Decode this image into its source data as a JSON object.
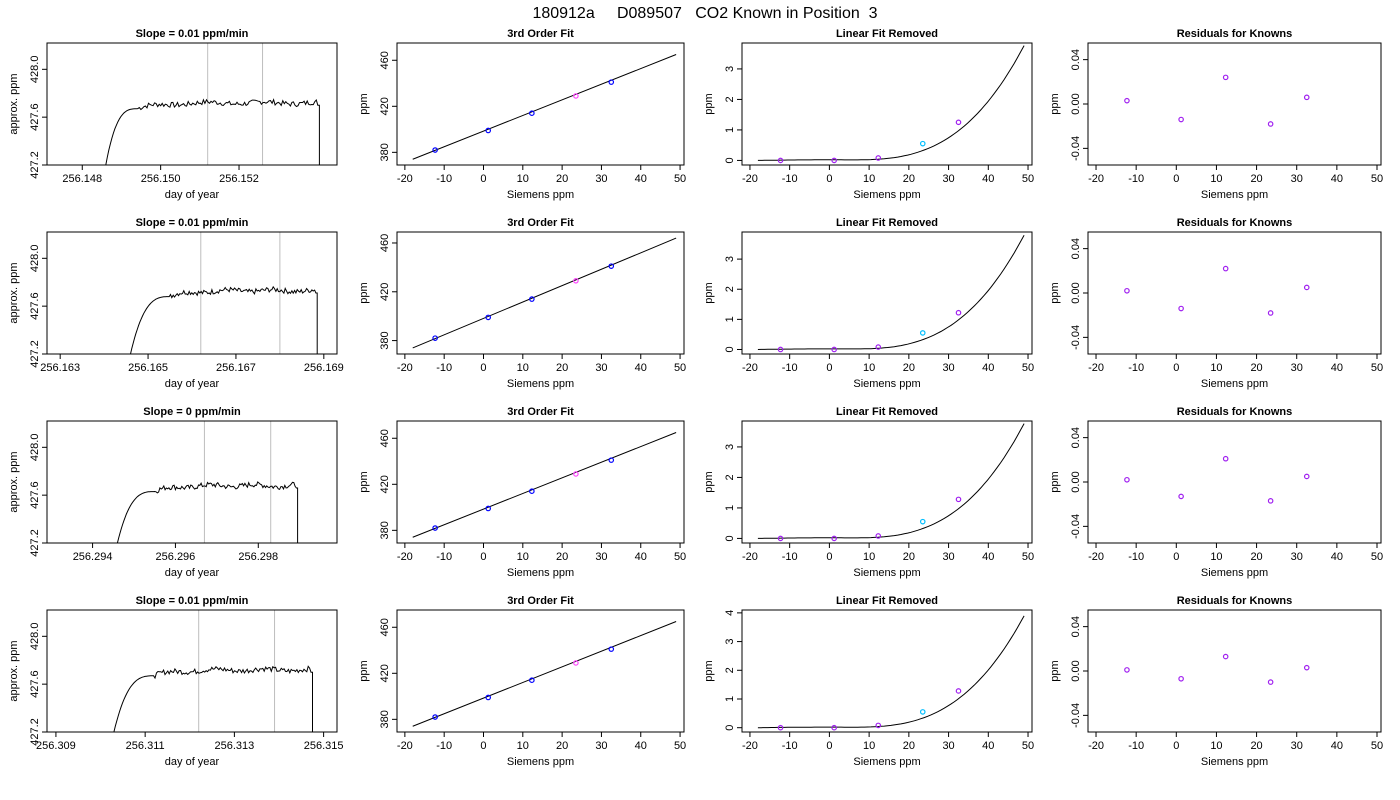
{
  "figure": {
    "title": "180912a     D089507   CO2 Known in Position  3",
    "colors": {
      "line": "#000000",
      "frame": "#000000",
      "vline": "#bebebe",
      "pt_blue": "#0000ff",
      "pt_purple": "#a020f0",
      "pt_pink": "#ff44ff",
      "pt_cyan": "#00bfff"
    }
  },
  "chart_data": [
    {
      "id": "r1c1",
      "type": "line",
      "title": "Slope =  0.01  ppm/min",
      "xlabel": "day of year",
      "ylabel": "approx. ppm",
      "xlim": [
        256.1471,
        256.1545
      ],
      "ylim": [
        427.2,
        428.22
      ],
      "xticks": [
        256.148,
        256.15,
        256.152
      ],
      "xtick_labels": [
        "256.148",
        "256.150",
        "256.152"
      ],
      "yticks": [
        427.2,
        427.6,
        428.0
      ],
      "ytick_labels": [
        "427.2",
        "427.6",
        "428.0"
      ],
      "vlines": [
        256.1512,
        256.1526
      ],
      "trace": {
        "x_start": 256.1486,
        "x_rise_end": 256.1494,
        "plateau_start": 256.1491,
        "plateau_end": 256.154,
        "x_end": 256.15405,
        "plateau_level": 427.72,
        "start_level": 427.2,
        "end_level": 427.2
      }
    },
    {
      "id": "r1c2",
      "type": "scatter",
      "title": "3rd Order Fit",
      "xlabel": "Siemens ppm",
      "ylabel": "ppm",
      "xlim": [
        -22,
        51
      ],
      "ylim": [
        369,
        475
      ],
      "xticks": [
        -20,
        -10,
        0,
        10,
        20,
        30,
        40,
        50
      ],
      "xtick_labels": [
        "-20",
        "-10",
        "0",
        "10",
        "20",
        "30",
        "40",
        "50"
      ],
      "yticks": [
        380,
        420,
        460
      ],
      "ytick_labels": [
        "380",
        "420",
        "460"
      ],
      "line": {
        "x": [
          -18,
          49
        ],
        "y": [
          374,
          465
        ]
      },
      "points": [
        {
          "x": -12.3,
          "y": 382,
          "c": "pt_blue"
        },
        {
          "x": 1.2,
          "y": 399,
          "c": "pt_blue"
        },
        {
          "x": 12.3,
          "y": 414,
          "c": "pt_blue"
        },
        {
          "x": 23.5,
          "y": 429,
          "c": "pt_pink"
        },
        {
          "x": 32.5,
          "y": 441,
          "c": "pt_blue"
        }
      ]
    },
    {
      "id": "r1c3",
      "type": "scatter",
      "title": "Linear Fit Removed",
      "xlabel": "Siemens ppm",
      "ylabel": "ppm",
      "xlim": [
        -22,
        51
      ],
      "ylim": [
        -0.15,
        3.85
      ],
      "xticks": [
        -20,
        -10,
        0,
        10,
        20,
        30,
        40,
        50
      ],
      "xtick_labels": [
        "-20",
        "-10",
        "0",
        "10",
        "20",
        "30",
        "40",
        "50"
      ],
      "yticks": [
        0,
        1,
        2,
        3
      ],
      "ytick_labels": [
        "0",
        "1",
        "2",
        "3"
      ],
      "curve": {
        "x0": -18,
        "x1": 49,
        "amp": 3.77
      },
      "points": [
        {
          "x": -12.3,
          "y": 0,
          "c": "pt_purple"
        },
        {
          "x": 1.2,
          "y": 0,
          "c": "pt_purple"
        },
        {
          "x": 12.3,
          "y": 0.08,
          "c": "pt_purple"
        },
        {
          "x": 23.5,
          "y": 0.55,
          "c": "pt_cyan"
        },
        {
          "x": 32.5,
          "y": 1.25,
          "c": "pt_purple"
        }
      ]
    },
    {
      "id": "r1c4",
      "type": "scatter",
      "title": "Residuals for Knowns",
      "xlabel": "Siemens ppm",
      "ylabel": "ppm",
      "xlim": [
        -22,
        51
      ],
      "ylim": [
        -0.055,
        0.055
      ],
      "xticks": [
        -20,
        -10,
        0,
        10,
        20,
        30,
        40,
        50
      ],
      "xtick_labels": [
        "-20",
        "-10",
        "0",
        "10",
        "20",
        "30",
        "40",
        "50"
      ],
      "yticks": [
        -0.04,
        0.0,
        0.04
      ],
      "ytick_labels": [
        "-0.04",
        "0.00",
        "0.04"
      ],
      "points": [
        {
          "x": -12.3,
          "y": 0.003,
          "c": "pt_purple"
        },
        {
          "x": 1.2,
          "y": -0.014,
          "c": "pt_purple"
        },
        {
          "x": 12.3,
          "y": 0.024,
          "c": "pt_purple"
        },
        {
          "x": 23.5,
          "y": -0.018,
          "c": "pt_purple"
        },
        {
          "x": 32.5,
          "y": 0.006,
          "c": "pt_purple"
        }
      ]
    },
    {
      "id": "r2c1",
      "type": "line",
      "title": "Slope =  0.01  ppm/min",
      "xlabel": "day of year",
      "ylabel": "approx. ppm",
      "xlim": [
        256.1627,
        256.1693
      ],
      "ylim": [
        427.2,
        428.22
      ],
      "xticks": [
        256.163,
        256.165,
        256.167,
        256.169
      ],
      "xtick_labels": [
        "256.163",
        "256.165",
        "256.167",
        "256.169"
      ],
      "yticks": [
        427.2,
        427.6,
        428.0
      ],
      "ytick_labels": [
        "427.2",
        "427.6",
        "428.0"
      ],
      "vlines": [
        256.1662,
        256.168
      ],
      "trace": {
        "x_start": 256.1646,
        "x_rise_end": 256.1655,
        "plateau_start": 256.165,
        "plateau_end": 256.1688,
        "x_end": 256.16885,
        "plateau_level": 427.73,
        "start_level": 427.2,
        "end_level": 427.2
      }
    },
    {
      "id": "r2c2",
      "type": "scatter",
      "title": "3rd Order Fit",
      "xlabel": "Siemens ppm",
      "ylabel": "ppm",
      "xlim": [
        -22,
        51
      ],
      "ylim": [
        369,
        469
      ],
      "xticks": [
        -20,
        -10,
        0,
        10,
        20,
        30,
        40,
        50
      ],
      "xtick_labels": [
        "-20",
        "-10",
        "0",
        "10",
        "20",
        "30",
        "40",
        "50"
      ],
      "yticks": [
        380,
        420,
        460
      ],
      "ytick_labels": [
        "380",
        "420",
        "460"
      ],
      "line": {
        "x": [
          -18,
          49
        ],
        "y": [
          374,
          464
        ]
      },
      "points": [
        {
          "x": -12.3,
          "y": 382,
          "c": "pt_blue"
        },
        {
          "x": 1.2,
          "y": 399,
          "c": "pt_blue"
        },
        {
          "x": 12.3,
          "y": 414,
          "c": "pt_blue"
        },
        {
          "x": 23.5,
          "y": 429,
          "c": "pt_pink"
        },
        {
          "x": 32.5,
          "y": 441,
          "c": "pt_blue"
        }
      ]
    },
    {
      "id": "r2c3",
      "type": "scatter",
      "title": "Linear Fit Removed",
      "xlabel": "Siemens ppm",
      "ylabel": "ppm",
      "xlim": [
        -22,
        51
      ],
      "ylim": [
        -0.15,
        3.9
      ],
      "xticks": [
        -20,
        -10,
        0,
        10,
        20,
        30,
        40,
        50
      ],
      "xtick_labels": [
        "-20",
        "-10",
        "0",
        "10",
        "20",
        "30",
        "40",
        "50"
      ],
      "yticks": [
        0,
        1,
        2,
        3
      ],
      "ytick_labels": [
        "0",
        "1",
        "2",
        "3"
      ],
      "curve": {
        "x0": -18,
        "x1": 49,
        "amp": 3.8
      },
      "points": [
        {
          "x": -12.3,
          "y": 0,
          "c": "pt_purple"
        },
        {
          "x": 1.2,
          "y": 0,
          "c": "pt_purple"
        },
        {
          "x": 12.3,
          "y": 0.08,
          "c": "pt_purple"
        },
        {
          "x": 23.5,
          "y": 0.55,
          "c": "pt_cyan"
        },
        {
          "x": 32.5,
          "y": 1.22,
          "c": "pt_purple"
        }
      ]
    },
    {
      "id": "r2c4",
      "type": "scatter",
      "title": "Residuals for Knowns",
      "xlabel": "Siemens ppm",
      "ylabel": "ppm",
      "xlim": [
        -22,
        51
      ],
      "ylim": [
        -0.055,
        0.055
      ],
      "xticks": [
        -20,
        -10,
        0,
        10,
        20,
        30,
        40,
        50
      ],
      "xtick_labels": [
        "-20",
        "-10",
        "0",
        "10",
        "20",
        "30",
        "40",
        "50"
      ],
      "yticks": [
        -0.04,
        0.0,
        0.04
      ],
      "ytick_labels": [
        "-0.04",
        "0.00",
        "0.04"
      ],
      "points": [
        {
          "x": -12.3,
          "y": 0.002,
          "c": "pt_purple"
        },
        {
          "x": 1.2,
          "y": -0.014,
          "c": "pt_purple"
        },
        {
          "x": 12.3,
          "y": 0.022,
          "c": "pt_purple"
        },
        {
          "x": 23.5,
          "y": -0.018,
          "c": "pt_purple"
        },
        {
          "x": 32.5,
          "y": 0.005,
          "c": "pt_purple"
        }
      ]
    },
    {
      "id": "r3c1",
      "type": "line",
      "title": "Slope =  0  ppm/min",
      "xlabel": "day of year",
      "ylabel": "approx. ppm",
      "xlim": [
        256.2929,
        256.2999
      ],
      "ylim": [
        427.2,
        428.22
      ],
      "xticks": [
        256.294,
        256.296,
        256.298
      ],
      "xtick_labels": [
        "256.294",
        "256.296",
        "256.298"
      ],
      "yticks": [
        427.2,
        427.6,
        428.0
      ],
      "ytick_labels": [
        "427.2",
        "427.6",
        "428.0"
      ],
      "vlines": [
        256.2967,
        256.2983
      ],
      "trace": {
        "x_start": 256.2946,
        "x_rise_end": 256.2955,
        "plateau_start": 256.2951,
        "plateau_end": 256.2989,
        "x_end": 256.29895,
        "plateau_level": 427.68,
        "start_level": 427.2,
        "end_level": 427.2
      }
    },
    {
      "id": "r3c2",
      "type": "scatter",
      "title": "3rd Order Fit",
      "xlabel": "Siemens ppm",
      "ylabel": "ppm",
      "xlim": [
        -22,
        51
      ],
      "ylim": [
        369,
        475
      ],
      "xticks": [
        -20,
        -10,
        0,
        10,
        20,
        30,
        40,
        50
      ],
      "xtick_labels": [
        "-20",
        "-10",
        "0",
        "10",
        "20",
        "30",
        "40",
        "50"
      ],
      "yticks": [
        380,
        420,
        460
      ],
      "ytick_labels": [
        "380",
        "420",
        "460"
      ],
      "line": {
        "x": [
          -18,
          49
        ],
        "y": [
          374,
          465
        ]
      },
      "points": [
        {
          "x": -12.3,
          "y": 382,
          "c": "pt_blue"
        },
        {
          "x": 1.2,
          "y": 399,
          "c": "pt_blue"
        },
        {
          "x": 12.3,
          "y": 414,
          "c": "pt_blue"
        },
        {
          "x": 23.5,
          "y": 429,
          "c": "pt_pink"
        },
        {
          "x": 32.5,
          "y": 441,
          "c": "pt_blue"
        }
      ]
    },
    {
      "id": "r3c3",
      "type": "scatter",
      "title": "Linear Fit Removed",
      "xlabel": "Siemens ppm",
      "ylabel": "ppm",
      "xlim": [
        -22,
        51
      ],
      "ylim": [
        -0.15,
        3.85
      ],
      "xticks": [
        -20,
        -10,
        0,
        10,
        20,
        30,
        40,
        50
      ],
      "xtick_labels": [
        "-20",
        "-10",
        "0",
        "10",
        "20",
        "30",
        "40",
        "50"
      ],
      "yticks": [
        0,
        1,
        2,
        3
      ],
      "ytick_labels": [
        "0",
        "1",
        "2",
        "3"
      ],
      "curve": {
        "x0": -18,
        "x1": 49,
        "amp": 3.77
      },
      "points": [
        {
          "x": -12.3,
          "y": 0,
          "c": "pt_purple"
        },
        {
          "x": 1.2,
          "y": 0,
          "c": "pt_purple"
        },
        {
          "x": 12.3,
          "y": 0.08,
          "c": "pt_purple"
        },
        {
          "x": 23.5,
          "y": 0.55,
          "c": "pt_cyan"
        },
        {
          "x": 32.5,
          "y": 1.28,
          "c": "pt_purple"
        }
      ]
    },
    {
      "id": "r3c4",
      "type": "scatter",
      "title": "Residuals for Knowns",
      "xlabel": "Siemens ppm",
      "ylabel": "ppm",
      "xlim": [
        -22,
        51
      ],
      "ylim": [
        -0.055,
        0.055
      ],
      "xticks": [
        -20,
        -10,
        0,
        10,
        20,
        30,
        40,
        50
      ],
      "xtick_labels": [
        "-20",
        "-10",
        "0",
        "10",
        "20",
        "30",
        "40",
        "50"
      ],
      "yticks": [
        -0.04,
        0.0,
        0.04
      ],
      "ytick_labels": [
        "-0.04",
        "0.00",
        "0.04"
      ],
      "points": [
        {
          "x": -12.3,
          "y": 0.002,
          "c": "pt_purple"
        },
        {
          "x": 1.2,
          "y": -0.013,
          "c": "pt_purple"
        },
        {
          "x": 12.3,
          "y": 0.021,
          "c": "pt_purple"
        },
        {
          "x": 23.5,
          "y": -0.017,
          "c": "pt_purple"
        },
        {
          "x": 32.5,
          "y": 0.005,
          "c": "pt_purple"
        }
      ]
    },
    {
      "id": "r4c1",
      "type": "line",
      "title": "Slope =  0.01  ppm/min",
      "xlabel": "day of year",
      "ylabel": "approx. ppm",
      "xlim": [
        256.3088,
        256.3153
      ],
      "ylim": [
        427.2,
        428.22
      ],
      "xticks": [
        256.309,
        256.311,
        256.313,
        256.315
      ],
      "xtick_labels": [
        "256.309",
        "256.311",
        "256.313",
        "256.315"
      ],
      "yticks": [
        427.2,
        427.6,
        428.0
      ],
      "ytick_labels": [
        "427.2",
        "427.6",
        "428.0"
      ],
      "vlines": [
        256.3122,
        256.3139
      ],
      "trace": {
        "x_start": 256.3103,
        "x_rise_end": 256.3112,
        "plateau_start": 256.3108,
        "plateau_end": 256.3147,
        "x_end": 256.31475,
        "plateau_level": 427.72,
        "start_level": 427.2,
        "end_level": 427.2
      }
    },
    {
      "id": "r4c2",
      "type": "scatter",
      "title": "3rd Order Fit",
      "xlabel": "Siemens ppm",
      "ylabel": "ppm",
      "xlim": [
        -22,
        51
      ],
      "ylim": [
        369,
        475
      ],
      "xticks": [
        -20,
        -10,
        0,
        10,
        20,
        30,
        40,
        50
      ],
      "xtick_labels": [
        "-20",
        "-10",
        "0",
        "10",
        "20",
        "30",
        "40",
        "50"
      ],
      "yticks": [
        380,
        420,
        460
      ],
      "ytick_labels": [
        "380",
        "420",
        "460"
      ],
      "line": {
        "x": [
          -18,
          49
        ],
        "y": [
          374,
          465
        ]
      },
      "points": [
        {
          "x": -12.3,
          "y": 382,
          "c": "pt_blue"
        },
        {
          "x": 1.2,
          "y": 399,
          "c": "pt_blue"
        },
        {
          "x": 12.3,
          "y": 414,
          "c": "pt_blue"
        },
        {
          "x": 23.5,
          "y": 429,
          "c": "pt_pink"
        },
        {
          "x": 32.5,
          "y": 441,
          "c": "pt_blue"
        }
      ]
    },
    {
      "id": "r4c3",
      "type": "scatter",
      "title": "Linear Fit Removed",
      "xlabel": "Siemens ppm",
      "ylabel": "ppm",
      "xlim": [
        -22,
        51
      ],
      "ylim": [
        -0.15,
        4.1
      ],
      "xticks": [
        -20,
        -10,
        0,
        10,
        20,
        30,
        40,
        50
      ],
      "xtick_labels": [
        "-20",
        "-10",
        "0",
        "10",
        "20",
        "30",
        "40",
        "50"
      ],
      "yticks": [
        0,
        1,
        2,
        3,
        4
      ],
      "ytick_labels": [
        "0",
        "1",
        "2",
        "3",
        "4"
      ],
      "curve": {
        "x0": -18,
        "x1": 49,
        "amp": 3.9
      },
      "points": [
        {
          "x": -12.3,
          "y": 0,
          "c": "pt_purple"
        },
        {
          "x": 1.2,
          "y": 0,
          "c": "pt_purple"
        },
        {
          "x": 12.3,
          "y": 0.08,
          "c": "pt_purple"
        },
        {
          "x": 23.5,
          "y": 0.55,
          "c": "pt_cyan"
        },
        {
          "x": 32.5,
          "y": 1.28,
          "c": "pt_purple"
        }
      ]
    },
    {
      "id": "r4c4",
      "type": "scatter",
      "title": "Residuals for Knowns",
      "xlabel": "Siemens ppm",
      "ylabel": "ppm",
      "xlim": [
        -22,
        51
      ],
      "ylim": [
        -0.055,
        0.055
      ],
      "xticks": [
        -20,
        -10,
        0,
        10,
        20,
        30,
        40,
        50
      ],
      "xtick_labels": [
        "-20",
        "-10",
        "0",
        "10",
        "20",
        "30",
        "40",
        "50"
      ],
      "yticks": [
        -0.04,
        0.0,
        0.04
      ],
      "ytick_labels": [
        "-0.04",
        "0.00",
        "0.04"
      ],
      "points": [
        {
          "x": -12.3,
          "y": 0.001,
          "c": "pt_purple"
        },
        {
          "x": 1.2,
          "y": -0.007,
          "c": "pt_purple"
        },
        {
          "x": 12.3,
          "y": 0.013,
          "c": "pt_purple"
        },
        {
          "x": 23.5,
          "y": -0.01,
          "c": "pt_purple"
        },
        {
          "x": 32.5,
          "y": 0.003,
          "c": "pt_purple"
        }
      ]
    }
  ]
}
